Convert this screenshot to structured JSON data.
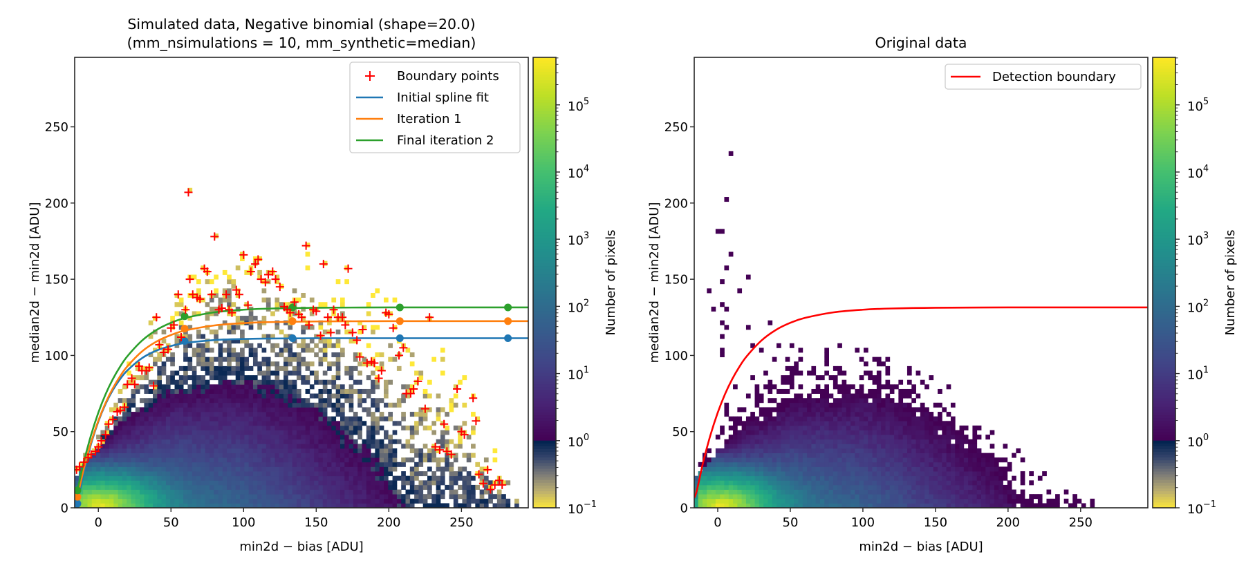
{
  "chart_data": [
    {
      "type": "heatmap",
      "title": [
        "Simulated data, Negative binomial (shape=20.0)",
        "(mm_nsimulations = 10, mm_synthetic=median)"
      ],
      "xlabel": "min2d − bias  [ADU]",
      "ylabel": "median2d − min2d  [ADU]",
      "xlim": [
        -16.3,
        296
      ],
      "ylim": [
        0,
        295.6
      ],
      "xticks": [
        0,
        50,
        100,
        150,
        200,
        250
      ],
      "yticks": [
        0,
        50,
        100,
        150,
        200,
        250
      ],
      "grid": false,
      "colorbar": {
        "label": "Number of pixels",
        "scale": "log",
        "range": [
          0.1,
          510000
        ],
        "colormap_above_1": "viridis",
        "colormap_below_1": "cividis_r",
        "ticks": [
          {
            "base": "10",
            "exp": "−1"
          },
          {
            "base": "10",
            "exp": "0"
          },
          {
            "base": "10",
            "exp": "1"
          },
          {
            "base": "10",
            "exp": "2"
          },
          {
            "base": "10",
            "exp": "3"
          },
          {
            "base": "10",
            "exp": "4"
          },
          {
            "base": "10",
            "exp": "5"
          }
        ]
      },
      "legend": {
        "placement": "upper right",
        "entries": [
          {
            "label": "Boundary points",
            "color": "#ff0000",
            "marker": "+"
          },
          {
            "label": "Initial spline fit",
            "color": "#1f77b4"
          },
          {
            "label": "Iteration 1",
            "color": "#ff7f0e"
          },
          {
            "label": "Final iteration 2",
            "color": "#2ca02c"
          }
        ]
      },
      "series": [
        {
          "name": "Boundary points",
          "type": "scatter",
          "marker": "+",
          "color": "#ff0000",
          "x": [
            -15,
            -13,
            -10,
            -7,
            -5,
            -2,
            0,
            2,
            5,
            7,
            10,
            13,
            15,
            18,
            20,
            23,
            25,
            28,
            30,
            33,
            35,
            38,
            40,
            42,
            45,
            48,
            50,
            52,
            55,
            57,
            60,
            62,
            63,
            65,
            68,
            70,
            73,
            75,
            78,
            80,
            83,
            85,
            88,
            90,
            92,
            95,
            97,
            100,
            103,
            105,
            108,
            110,
            112,
            115,
            117,
            120,
            122,
            125,
            128,
            130,
            132,
            135,
            138,
            140,
            143,
            145,
            148,
            150,
            153,
            155,
            158,
            160,
            162,
            165,
            168,
            170,
            172,
            175,
            178,
            180,
            182,
            185,
            188,
            190,
            193,
            195,
            198,
            200,
            203,
            207,
            210,
            212,
            215,
            217,
            220,
            225,
            228,
            232,
            235,
            238,
            240,
            243,
            247,
            250,
            252,
            258,
            260,
            262,
            265,
            268,
            270,
            273,
            276,
            278
          ],
          "y": [
            25,
            27,
            30,
            33,
            35,
            37,
            40,
            44,
            48,
            55,
            58,
            63,
            64,
            66,
            81,
            85,
            81,
            93,
            90,
            90,
            92,
            80,
            125,
            107,
            102,
            104,
            118,
            120,
            140,
            112,
            130,
            207,
            150,
            140,
            138,
            137,
            157,
            155,
            140,
            178,
            130,
            131,
            140,
            130,
            128,
            143,
            140,
            166,
            133,
            155,
            160,
            163,
            150,
            148,
            153,
            155,
            150,
            145,
            132,
            130,
            128,
            135,
            127,
            125,
            172,
            120,
            130,
            129,
            113,
            160,
            125,
            115,
            130,
            125,
            125,
            120,
            157,
            115,
            110,
            99,
            117,
            95,
            96,
            95,
            85,
            90,
            128,
            127,
            118,
            100,
            105,
            75,
            75,
            78,
            83,
            65,
            125,
            40,
            38,
            55,
            37,
            35,
            78,
            50,
            48,
            72,
            57,
            22,
            16,
            25,
            12,
            15,
            18,
            15
          ]
        },
        {
          "name": "Initial spline fit",
          "type": "line",
          "color": "#1f77b4",
          "x": [
            -14.4,
            -10,
            -5,
            0,
            5,
            10,
            15,
            20,
            30,
            40,
            50,
            60,
            80,
            100,
            120,
            150,
            200,
            250,
            296
          ],
          "y": [
            2.7,
            23.2,
            41.9,
            56.6,
            68.2,
            77.3,
            84.5,
            90.2,
            98.2,
            103.2,
            106.2,
            108.2,
            110.1,
            110.8,
            111.1,
            111.3,
            111.3,
            111.3,
            111.3
          ],
          "knots": {
            "x": [
              -14.4,
              59.4,
              133.7,
              207.6,
              282
            ],
            "y": [
              2.7,
              109.5,
              111.3,
              111.3,
              111.3
            ]
          }
        },
        {
          "name": "Iteration 1",
          "type": "line",
          "color": "#ff7f0e",
          "x": [
            -14.4,
            -10,
            -5,
            0,
            5,
            10,
            15,
            20,
            30,
            40,
            50,
            60,
            80,
            100,
            120,
            150,
            200,
            250,
            296
          ],
          "y": [
            7.2,
            25.6,
            43.0,
            57.2,
            68.9,
            78.5,
            86.4,
            92.9,
            102.6,
            109.1,
            113.4,
            116.4,
            119.7,
            121.2,
            121.9,
            122.3,
            122.5,
            122.5,
            122.5
          ],
          "knots": {
            "x": [
              -14.4,
              59.4,
              133.7,
              207.6,
              282
            ],
            "y": [
              7.2,
              117.6,
              122.5,
              122.5,
              122.5
            ]
          }
        },
        {
          "name": "Final iteration 2",
          "type": "line",
          "color": "#2ca02c",
          "x": [
            -14.4,
            -10,
            -5,
            0,
            5,
            10,
            15,
            20,
            30,
            40,
            50,
            60,
            80,
            100,
            120,
            150,
            200,
            250,
            296
          ],
          "y": [
            11.4,
            30.1,
            47.8,
            62.5,
            74.6,
            84.5,
            92.7,
            99.5,
            109.7,
            116.7,
            121.4,
            124.6,
            128.3,
            130.0,
            130.8,
            131.3,
            131.5,
            131.5,
            131.5
          ],
          "knots": {
            "x": [
              -14.4,
              59.4,
              133.7,
              207.6,
              282
            ],
            "y": [
              11.4,
              125.7,
              131.5,
              131.5,
              131.5
            ]
          }
        }
      ]
    },
    {
      "type": "heatmap",
      "title": [
        "Original data"
      ],
      "xlabel": "min2d − bias  [ADU]",
      "ylabel": "median2d − min2d  [ADU]",
      "xlim": [
        -16.2,
        296.3
      ],
      "ylim": [
        0,
        295.6
      ],
      "xticks": [
        0,
        50,
        100,
        150,
        200,
        250
      ],
      "yticks": [
        0,
        50,
        100,
        150,
        200,
        250
      ],
      "grid": false,
      "colorbar": {
        "label": "Number of pixels",
        "scale": "log",
        "range": [
          0.1,
          510000
        ],
        "colormap_above_1": "viridis",
        "colormap_below_1": "cividis_r",
        "ticks": [
          {
            "base": "10",
            "exp": "−1"
          },
          {
            "base": "10",
            "exp": "0"
          },
          {
            "base": "10",
            "exp": "1"
          },
          {
            "base": "10",
            "exp": "2"
          },
          {
            "base": "10",
            "exp": "3"
          },
          {
            "base": "10",
            "exp": "4"
          },
          {
            "base": "10",
            "exp": "5"
          }
        ]
      },
      "legend": {
        "placement": "upper right",
        "entries": [
          {
            "label": "Detection boundary",
            "color": "#ff0000"
          }
        ]
      },
      "isolated_cells": {
        "x": [
          10,
          7,
          -1.5,
          1.5,
          10,
          7,
          19.6,
          4,
          -5.3,
          13.5,
          -3,
          7,
          1.5,
          4,
          35.6,
          7,
          19.6,
          1.5,
          23,
          4,
          1.5
        ],
        "y": [
          232,
          202.5,
          181.8,
          181.8,
          166.8,
          158.2,
          152.3,
          149,
          143.3,
          143.3,
          131.4,
          131.4,
          134.7,
          122.3,
          122.3,
          119.6,
          119.6,
          113.7,
          107.7,
          103.6,
          100.6
        ]
      },
      "series": [
        {
          "name": "Detection boundary",
          "type": "line",
          "color": "#ff0000",
          "x": [
            -16.2,
            -14.4,
            -10,
            -5,
            0,
            5,
            10,
            15,
            20,
            30,
            40,
            50,
            60,
            80,
            100,
            120,
            150,
            200,
            250,
            296
          ],
          "y": [
            6.5,
            11.4,
            30.1,
            47.8,
            62.5,
            74.6,
            84.5,
            92.7,
            99.5,
            109.7,
            116.7,
            121.4,
            124.6,
            128.3,
            130.0,
            130.8,
            131.3,
            131.5,
            131.5,
            131.5
          ]
        }
      ]
    }
  ]
}
